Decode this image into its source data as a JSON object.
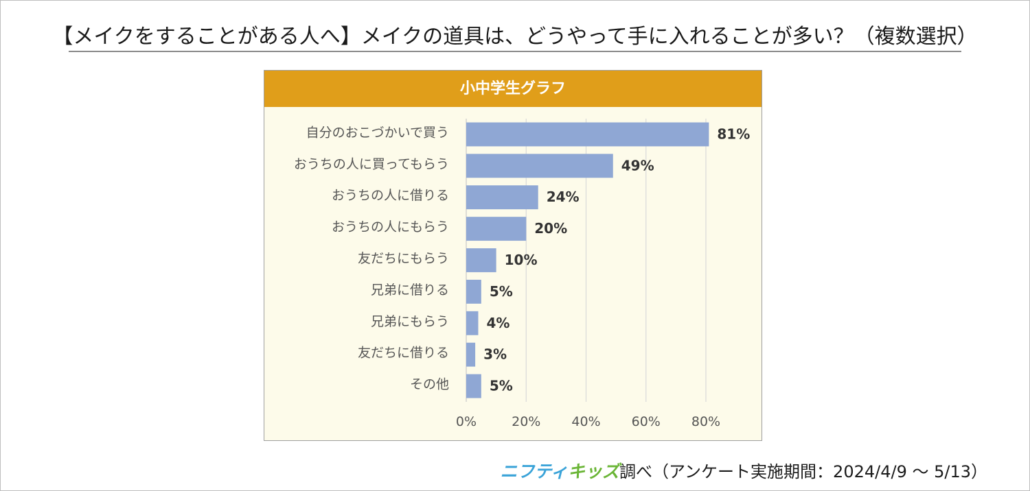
{
  "title": "【メイクをすることがある人へ】メイクの道具は、どうやって手に入れることが多い？（複数選択）",
  "chart_data": {
    "type": "bar",
    "orientation": "horizontal",
    "title": "小中学生グラフ",
    "categories": [
      "自分のおこづかいで買う",
      "おうちの人に買ってもらう",
      "おうちの人に借りる",
      "おうちの人にもらう",
      "友だちにもらう",
      "兄弟に借りる",
      "兄弟にもらう",
      "友だちに借りる",
      "その他"
    ],
    "values": [
      81,
      49,
      24,
      20,
      10,
      5,
      4,
      3,
      5
    ],
    "data_labels": [
      "81%",
      "49%",
      "24%",
      "20%",
      "10%",
      "5%",
      "4%",
      "3%",
      "5%"
    ],
    "xlim": [
      0,
      80
    ],
    "xticks": [
      0,
      20,
      40,
      60,
      80
    ],
    "xtick_labels": [
      "0%",
      "20%",
      "40%",
      "60%",
      "80%"
    ],
    "xlabel": "",
    "ylabel": "",
    "grid": true,
    "legend": "none",
    "colors": {
      "bar": "#8fa7d4",
      "header": "#e09e1a",
      "plot_bg": "#fdfbea",
      "grid": "#d9d9d9"
    }
  },
  "footer": {
    "logo_part1": "ニフティ",
    "logo_part2": "キッズ",
    "text": "調べ（アンケート実施期間：2024/4/9 ～ 5/13）"
  }
}
